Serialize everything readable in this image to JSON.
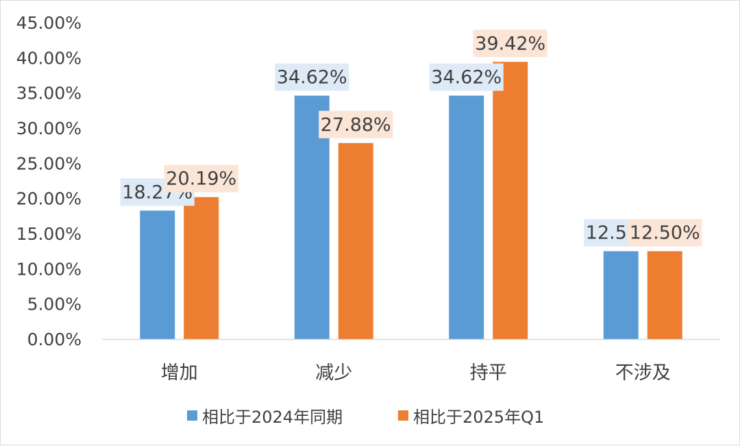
{
  "chart_data": {
    "type": "bar",
    "categories": [
      "增加",
      "减少",
      "持平",
      "不涉及"
    ],
    "series": [
      {
        "name": "相比于2024年同期",
        "values": [
          18.27,
          34.62,
          34.62,
          12.5
        ],
        "color": "#5B9BD5",
        "label_bg": "#DEEBF7"
      },
      {
        "name": "相比于2025年Q1",
        "values": [
          20.19,
          27.88,
          39.42,
          12.5
        ],
        "color": "#ED7D31",
        "label_bg": "#FBE5D6"
      }
    ],
    "ylim": [
      0,
      45
    ],
    "yticks": [
      "0.00%",
      "5.00%",
      "10.00%",
      "15.00%",
      "20.00%",
      "25.00%",
      "30.00%",
      "35.00%",
      "40.00%",
      "45.00%"
    ],
    "data_labels": [
      [
        "18.27%",
        "34.62%",
        "34.62%",
        "12.50%"
      ],
      [
        "20.19%",
        "27.88%",
        "39.42%",
        "12.50%"
      ]
    ],
    "grid": false,
    "legend_position": "bottom"
  }
}
